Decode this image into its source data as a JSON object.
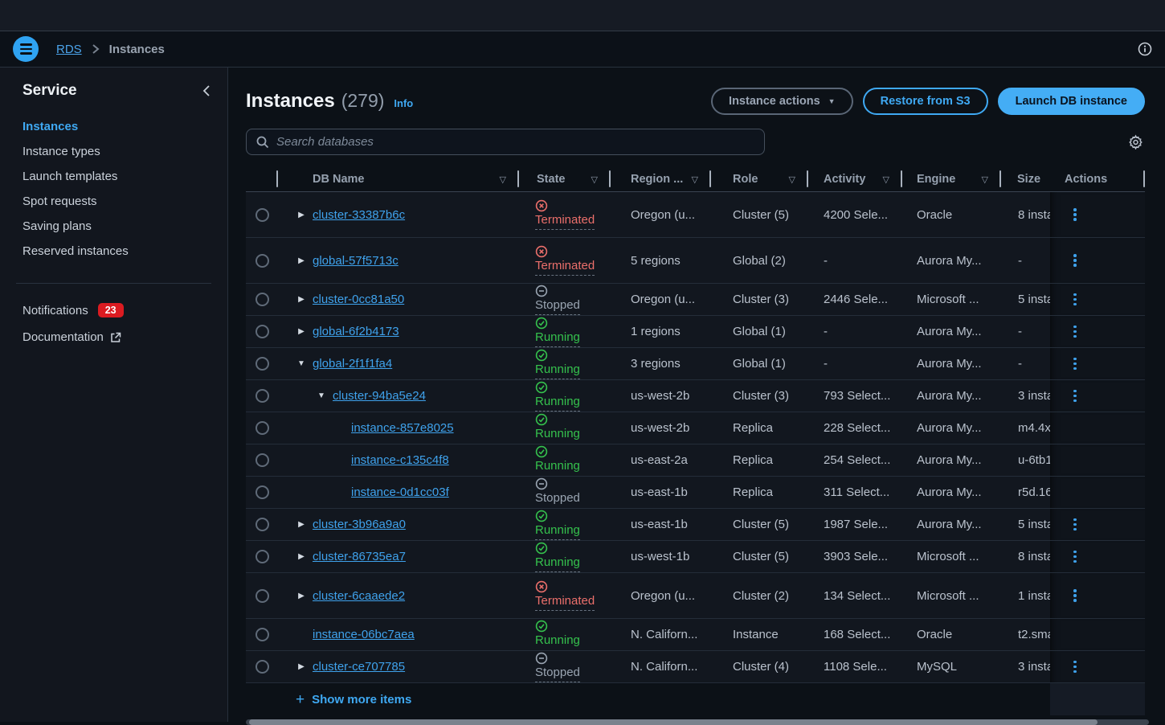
{
  "topnav": {
    "breadcrumb": {
      "root": "RDS",
      "current": "Instances"
    }
  },
  "sidebar": {
    "title": "Service",
    "items": [
      {
        "label": "Instances",
        "active": true
      },
      {
        "label": "Instance types",
        "active": false
      },
      {
        "label": "Launch templates",
        "active": false
      },
      {
        "label": "Spot requests",
        "active": false
      },
      {
        "label": "Saving plans",
        "active": false
      },
      {
        "label": "Reserved instances",
        "active": false
      }
    ],
    "notifications": {
      "label": "Notifications",
      "badge": "23"
    },
    "documentation": {
      "label": "Documentation"
    }
  },
  "page": {
    "title": "Instances",
    "count": "(279)",
    "info_label": "Info",
    "search_placeholder": "Search databases",
    "actions": {
      "instance_actions": "Instance actions",
      "restore": "Restore from S3",
      "launch": "Launch DB instance"
    }
  },
  "glyphs": {
    "sort": "▽",
    "caret": "▼",
    "collapsed": "▶",
    "expanded": "▼",
    "plus": "+"
  },
  "colors": {
    "accent_blue": "#3FA9F3",
    "link_blue": "#3FA2EC",
    "running_green": "#35C24D",
    "terminated_red": "#EB6F6B",
    "stopped_gray": "#9AA5B2",
    "badge_red": "#DB1B21",
    "primary_button_bg": "#44ADF5"
  },
  "table": {
    "columns": [
      {
        "key": "select",
        "label": "",
        "sortable": false,
        "divider": false
      },
      {
        "key": "name",
        "label": "DB Name",
        "sortable": true,
        "divider": true
      },
      {
        "key": "state",
        "label": "State",
        "sortable": true,
        "divider": true
      },
      {
        "key": "region",
        "label": "Region ...",
        "sortable": true,
        "divider": true
      },
      {
        "key": "role",
        "label": "Role",
        "sortable": true,
        "divider": true
      },
      {
        "key": "activity",
        "label": "Activity",
        "sortable": true,
        "divider": true
      },
      {
        "key": "engine",
        "label": "Engine",
        "sortable": true,
        "divider": true
      },
      {
        "key": "size",
        "label": "Size",
        "sortable": false,
        "divider": true
      },
      {
        "key": "actions",
        "label": "Actions",
        "sortable": false,
        "divider": false
      }
    ],
    "rows": [
      {
        "name": "cluster-33387b6c",
        "level": 1,
        "expander": "collapsed",
        "state": "Terminated",
        "state_kind": "terminated",
        "state_underline": true,
        "region": "Oregon (u...",
        "role": "Cluster (5)",
        "activity": "4200 Sele...",
        "engine": "Oracle",
        "size": "8 insta",
        "kebab": true,
        "tall": true
      },
      {
        "name": "global-57f5713c",
        "level": 1,
        "expander": "collapsed",
        "state": "Terminated",
        "state_kind": "terminated",
        "state_underline": true,
        "region": "5 regions",
        "role": "Global (2)",
        "activity": "-",
        "engine": "Aurora My...",
        "size": "-",
        "kebab": true,
        "tall": true
      },
      {
        "name": "cluster-0cc81a50",
        "level": 1,
        "expander": "collapsed",
        "state": "Stopped",
        "state_kind": "stopped",
        "state_underline": true,
        "region": "Oregon (u...",
        "role": "Cluster (3)",
        "activity": "2446 Sele...",
        "engine": "Microsoft ...",
        "size": "5 insta",
        "kebab": true,
        "tall": false
      },
      {
        "name": "global-6f2b4173",
        "level": 1,
        "expander": "collapsed",
        "state": "Running",
        "state_kind": "running",
        "state_underline": true,
        "region": "1 regions",
        "role": "Global (1)",
        "activity": "-",
        "engine": "Aurora My...",
        "size": "-",
        "kebab": true,
        "tall": false
      },
      {
        "name": "global-2f1f1fa4",
        "level": 1,
        "expander": "expanded",
        "state": "Running",
        "state_kind": "running",
        "state_underline": true,
        "region": "3 regions",
        "role": "Global (1)",
        "activity": "-",
        "engine": "Aurora My...",
        "size": "-",
        "kebab": true,
        "tall": false
      },
      {
        "name": "cluster-94ba5e24",
        "level": 2,
        "expander": "expanded",
        "state": "Running",
        "state_kind": "running",
        "state_underline": true,
        "region": "us-west-2b",
        "role": "Cluster (3)",
        "activity": "793 Select...",
        "engine": "Aurora My...",
        "size": "3 insta",
        "kebab": true,
        "tall": false
      },
      {
        "name": "instance-857e8025",
        "level": 3,
        "expander": "none",
        "state": "Running",
        "state_kind": "running",
        "state_underline": false,
        "region": "us-west-2b",
        "role": "Replica",
        "activity": "228 Select...",
        "engine": "Aurora My...",
        "size": "m4.4x",
        "kebab": false,
        "tall": false
      },
      {
        "name": "instance-c135c4f8",
        "level": 3,
        "expander": "none",
        "state": "Running",
        "state_kind": "running",
        "state_underline": false,
        "region": "us-east-2a",
        "role": "Replica",
        "activity": "254 Select...",
        "engine": "Aurora My...",
        "size": "u-6tb1",
        "kebab": false,
        "tall": false
      },
      {
        "name": "instance-0d1cc03f",
        "level": 3,
        "expander": "none",
        "state": "Stopped",
        "state_kind": "stopped",
        "state_underline": false,
        "region": "us-east-1b",
        "role": "Replica",
        "activity": "311 Select...",
        "engine": "Aurora My...",
        "size": "r5d.16",
        "kebab": false,
        "tall": false
      },
      {
        "name": "cluster-3b96a9a0",
        "level": 1,
        "expander": "collapsed",
        "state": "Running",
        "state_kind": "running",
        "state_underline": true,
        "region": "us-east-1b",
        "role": "Cluster (5)",
        "activity": "1987 Sele...",
        "engine": "Aurora My...",
        "size": "5 insta",
        "kebab": true,
        "tall": false
      },
      {
        "name": "cluster-86735ea7",
        "level": 1,
        "expander": "collapsed",
        "state": "Running",
        "state_kind": "running",
        "state_underline": true,
        "region": "us-west-1b",
        "role": "Cluster (5)",
        "activity": "3903 Sele...",
        "engine": "Microsoft ...",
        "size": "8 insta",
        "kebab": true,
        "tall": false
      },
      {
        "name": "cluster-6caaede2",
        "level": 1,
        "expander": "collapsed",
        "state": "Terminated",
        "state_kind": "terminated",
        "state_underline": true,
        "region": "Oregon (u...",
        "role": "Cluster (2)",
        "activity": "134 Select...",
        "engine": "Microsoft ...",
        "size": "1 insta",
        "kebab": true,
        "tall": true
      },
      {
        "name": "instance-06bc7aea",
        "level": 1,
        "expander": "none",
        "state": "Running",
        "state_kind": "running",
        "state_underline": false,
        "region": "N. Californ...",
        "role": "Instance",
        "activity": "168 Select...",
        "engine": "Oracle",
        "size": "t2.sma",
        "kebab": false,
        "tall": false
      },
      {
        "name": "cluster-ce707785",
        "level": 1,
        "expander": "collapsed",
        "state": "Stopped",
        "state_kind": "stopped",
        "state_underline": true,
        "region": "N. Californ...",
        "role": "Cluster (4)",
        "activity": "1108 Sele...",
        "engine": "MySQL",
        "size": "3 insta",
        "kebab": true,
        "tall": false
      }
    ],
    "footer": {
      "show_more": "Show more items"
    }
  }
}
